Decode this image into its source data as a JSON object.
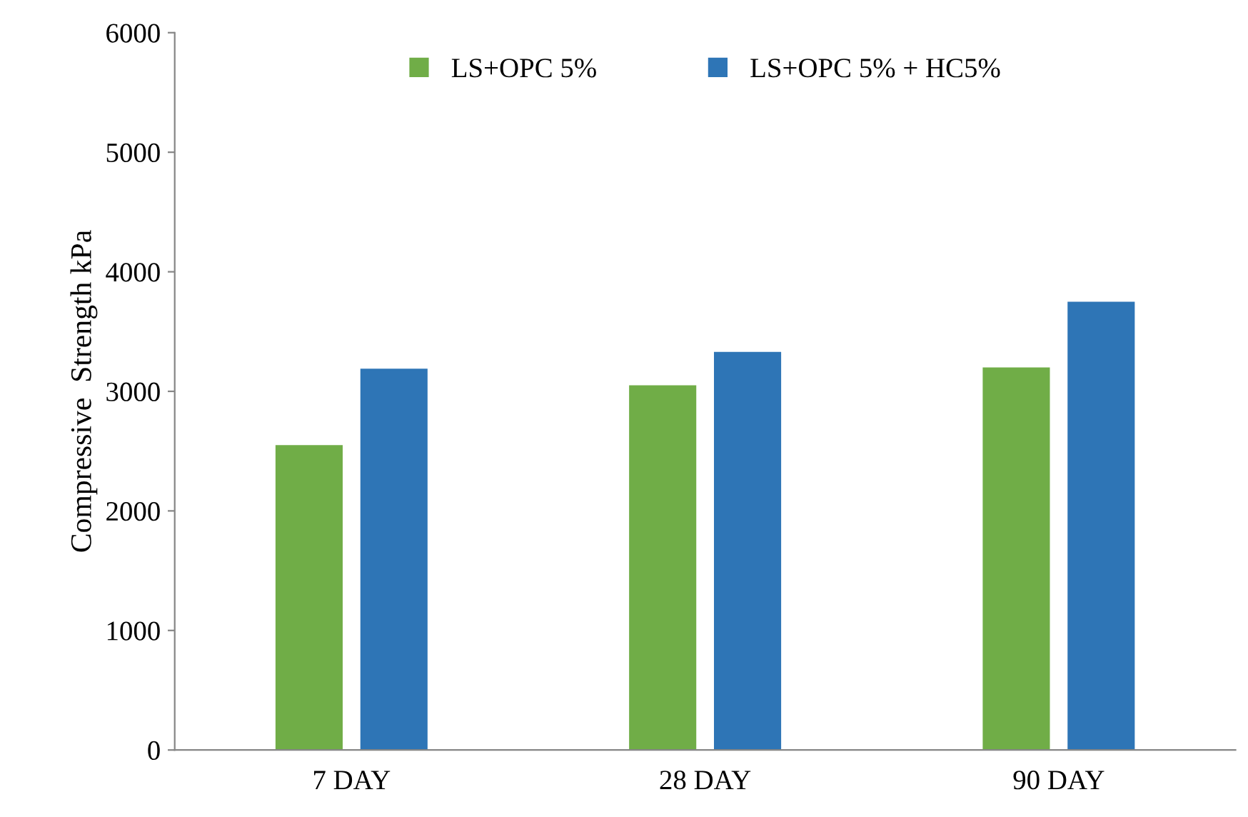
{
  "chart_data": {
    "type": "bar",
    "ylabel": "Compressive  Strength kPa",
    "categories": [
      "7 DAY",
      "28 DAY",
      "90 DAY"
    ],
    "series": [
      {
        "name": "LS+OPC 5%",
        "color": "#70ad47",
        "values": [
          2550,
          3050,
          3200
        ]
      },
      {
        "name": "LS+OPC 5% + HC5%",
        "color": "#2e75b6",
        "values": [
          3190,
          3330,
          3750
        ]
      }
    ],
    "ylim": [
      0,
      6000
    ],
    "yticks": [
      0,
      1000,
      2000,
      3000,
      4000,
      5000,
      6000
    ],
    "grid": false,
    "legend": "top"
  }
}
